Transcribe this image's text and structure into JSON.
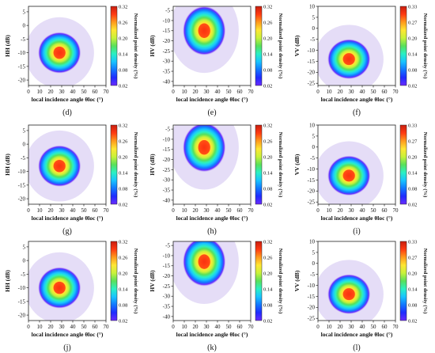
{
  "colors": {
    "colormap": [
      "#ffffff",
      "#c6b3ee",
      "#6a2bff",
      "#1f2cff",
      "#1277ff",
      "#19c4ff",
      "#2af0c4",
      "#59e05a",
      "#c8f23a",
      "#ffe634",
      "#ff9a1d",
      "#ff3a12",
      "#c81e0f"
    ],
    "axis": "#222222",
    "grid": "#d0d0d0"
  },
  "chart_data": [
    {
      "type": "heatmap",
      "panel": "(d)",
      "ylabel": "HH (dB)",
      "xlabel": "local incidence angle θloc (°)",
      "xticks": [
        "0",
        "10",
        "20",
        "30",
        "40",
        "50",
        "60",
        "70"
      ],
      "yticks": [
        "-20",
        "-15",
        "-10",
        "-5",
        "0",
        "5"
      ],
      "xlim": [
        0,
        70
      ],
      "ylim": [
        -22,
        7
      ],
      "colorbar_label": "Normalized point density (%)",
      "colorbar_ticks": [
        "0.32",
        "0.26",
        "0.20",
        "0.14",
        "0.08",
        "0.02"
      ],
      "colorbar_range": [
        0.02,
        0.32
      ],
      "peak": {
        "x": 28,
        "y": -10
      },
      "spread": {
        "x": 6,
        "y": 2.5
      }
    },
    {
      "type": "heatmap",
      "panel": "(e)",
      "ylabel": "HV (dB)",
      "xlabel": "local incidence angle θloc (°)",
      "xticks": [
        "0",
        "10",
        "20",
        "30",
        "40",
        "50",
        "60",
        "70"
      ],
      "yticks": [
        "-40",
        "-35",
        "-30",
        "-25",
        "-20",
        "-15",
        "-10",
        "-5"
      ],
      "xlim": [
        0,
        70
      ],
      "ylim": [
        -42,
        -3
      ],
      "colorbar_label": "Normalized point density (%)",
      "colorbar_ticks": [
        "0.32",
        "0.26",
        "0.20",
        "0.14",
        "0.08",
        "0.02"
      ],
      "colorbar_range": [
        0.02,
        0.32
      ],
      "peak": {
        "x": 28,
        "y": -15
      },
      "spread": {
        "x": 6,
        "y": 4
      }
    },
    {
      "type": "heatmap",
      "panel": "(f)",
      "ylabel": "VV (dB)",
      "xlabel": "local incidence angle θloc (°)",
      "xticks": [
        "0",
        "10",
        "20",
        "30",
        "40",
        "50",
        "60",
        "70"
      ],
      "yticks": [
        "-25",
        "-20",
        "-15",
        "-10",
        "-5",
        "0",
        "5",
        "10"
      ],
      "xlim": [
        0,
        70
      ],
      "ylim": [
        -26,
        10
      ],
      "colorbar_label": "Normalized point density (%)",
      "colorbar_ticks": [
        "0.33",
        "0.27",
        "0.20",
        "0.14",
        "0.08",
        "0.02"
      ],
      "colorbar_range": [
        0.02,
        0.33
      ],
      "peak": {
        "x": 28,
        "y": -14
      },
      "spread": {
        "x": 6,
        "y": 3
      }
    },
    {
      "type": "heatmap",
      "panel": "(g)",
      "ylabel": "HH (dB)",
      "xlabel": "local incidence angle θloc (°)",
      "xticks": [
        "0",
        "10",
        "20",
        "30",
        "40",
        "50",
        "60",
        "70"
      ],
      "yticks": [
        "-20",
        "-15",
        "-10",
        "-5",
        "0",
        "5"
      ],
      "xlim": [
        0,
        70
      ],
      "ylim": [
        -22,
        7
      ],
      "colorbar_label": "Normalized point density (%)",
      "colorbar_ticks": [
        "0.32",
        "0.26",
        "0.20",
        "0.14",
        "0.08",
        "0.02"
      ],
      "colorbar_range": [
        0.02,
        0.32
      ],
      "peak": {
        "x": 28,
        "y": -8
      },
      "spread": {
        "x": 6,
        "y": 2.5
      }
    },
    {
      "type": "heatmap",
      "panel": "(h)",
      "ylabel": "HV (dB)",
      "xlabel": "local incidence angle θloc (°)",
      "xticks": [
        "0",
        "10",
        "20",
        "30",
        "40",
        "50",
        "60",
        "70"
      ],
      "yticks": [
        "-40",
        "-35",
        "-30",
        "-25",
        "-20",
        "-15",
        "-10",
        "-5"
      ],
      "xlim": [
        0,
        70
      ],
      "ylim": [
        -42,
        -3
      ],
      "colorbar_label": "Normalized point density (%)",
      "colorbar_ticks": [
        "0.32",
        "0.26",
        "0.20",
        "0.14",
        "0.08",
        "0.02"
      ],
      "colorbar_range": [
        0.02,
        0.32
      ],
      "peak": {
        "x": 28,
        "y": -14
      },
      "spread": {
        "x": 6,
        "y": 4
      }
    },
    {
      "type": "heatmap",
      "panel": "(i)",
      "ylabel": "VV (dB)",
      "xlabel": "local incidence angle θloc (°)",
      "xticks": [
        "0",
        "10",
        "20",
        "30",
        "40",
        "50",
        "60",
        "70"
      ],
      "yticks": [
        "-25",
        "-20",
        "-15",
        "-10",
        "-5",
        "0",
        "5",
        "10"
      ],
      "xlim": [
        0,
        70
      ],
      "ylim": [
        -26,
        10
      ],
      "colorbar_label": "Normalized point density (%)",
      "colorbar_ticks": [
        "0.33",
        "0.27",
        "0.20",
        "0.14",
        "0.08",
        "0.02"
      ],
      "colorbar_range": [
        0.02,
        0.33
      ],
      "peak": {
        "x": 28,
        "y": -13
      },
      "spread": {
        "x": 6,
        "y": 3
      }
    },
    {
      "type": "heatmap",
      "panel": "(j)",
      "ylabel": "HH (dB)",
      "xlabel": "local incidence angle θloc (°)",
      "xticks": [
        "0",
        "10",
        "20",
        "30",
        "40",
        "50",
        "60",
        "70"
      ],
      "yticks": [
        "-20",
        "-15",
        "-10",
        "-5",
        "0",
        "5"
      ],
      "xlim": [
        0,
        70
      ],
      "ylim": [
        -22,
        7
      ],
      "colorbar_label": "Normalized point density (%)",
      "colorbar_ticks": [
        "0.32",
        "0.26",
        "0.20",
        "0.14",
        "0.08",
        "0.02"
      ],
      "colorbar_range": [
        0.02,
        0.32
      ],
      "peak": {
        "x": 28,
        "y": -10
      },
      "spread": {
        "x": 6,
        "y": 2.5
      }
    },
    {
      "type": "heatmap",
      "panel": "(k)",
      "ylabel": "HV (dB)",
      "xlabel": "local incidence angle θloc (°)",
      "xticks": [
        "0",
        "10",
        "20",
        "30",
        "40",
        "50",
        "60",
        "70"
      ],
      "yticks": [
        "-40",
        "-35",
        "-30",
        "-25",
        "-20",
        "-15",
        "-10",
        "-5"
      ],
      "xlim": [
        0,
        70
      ],
      "ylim": [
        -42,
        -3
      ],
      "colorbar_label": "Normalized point density (%)",
      "colorbar_ticks": [
        "0.32",
        "0.26",
        "0.20",
        "0.14",
        "0.08",
        "0.02"
      ],
      "colorbar_range": [
        0.02,
        0.32
      ],
      "peak": {
        "x": 28,
        "y": -13
      },
      "spread": {
        "x": 6,
        "y": 4
      }
    },
    {
      "type": "heatmap",
      "panel": "(l)",
      "ylabel": "VV (dB)",
      "xlabel": "local incidence angle θloc (°)",
      "xticks": [
        "0",
        "10",
        "20",
        "30",
        "40",
        "50",
        "60",
        "70"
      ],
      "yticks": [
        "-25",
        "-20",
        "-15",
        "-10",
        "-5",
        "0",
        "5",
        "10"
      ],
      "xlim": [
        0,
        70
      ],
      "ylim": [
        -26,
        10
      ],
      "colorbar_label": "Normalized point density (%)",
      "colorbar_ticks": [
        "0.33",
        "0.27",
        "0.20",
        "0.14",
        "0.08",
        "0.02"
      ],
      "colorbar_range": [
        0.02,
        0.33
      ],
      "peak": {
        "x": 28,
        "y": -14
      },
      "spread": {
        "x": 6,
        "y": 3
      }
    }
  ]
}
